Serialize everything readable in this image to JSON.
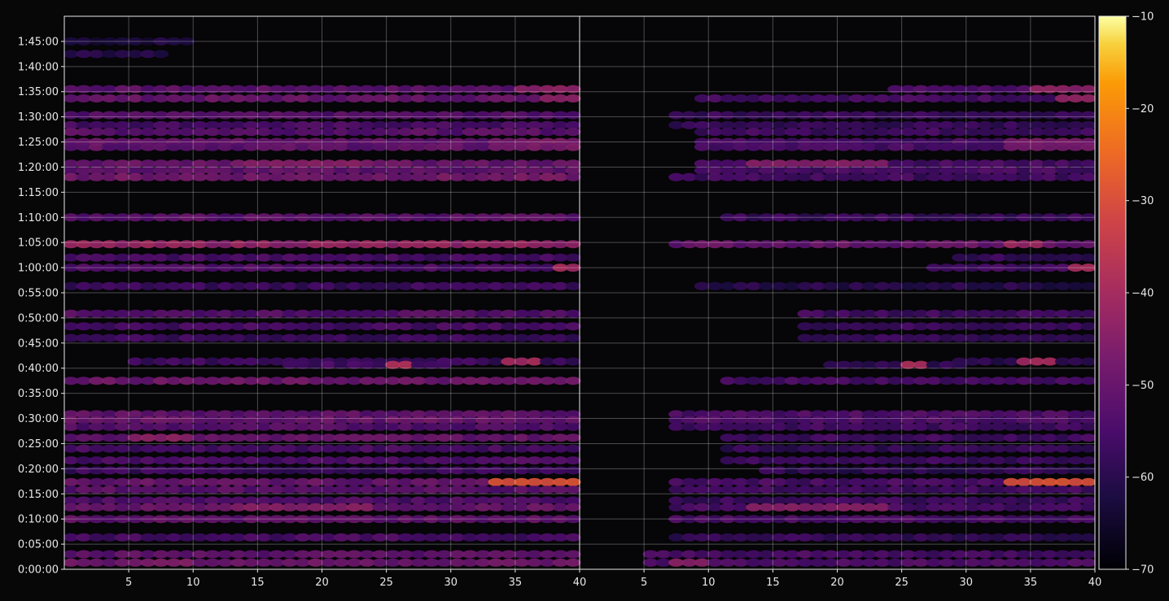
{
  "chart_data": {
    "type": "heatmap",
    "title": "",
    "xlabel": "",
    "ylabel": "",
    "grid": true,
    "panels": [
      {
        "name": "",
        "x_range": [
          1,
          40
        ],
        "x_ticks": [
          5,
          10,
          15,
          20,
          25,
          30,
          35,
          40
        ]
      },
      {
        "name": "",
        "x_range": [
          1,
          40
        ],
        "x_ticks": [
          5,
          10,
          15,
          20,
          25,
          30,
          35,
          40
        ]
      }
    ],
    "y_range_seconds": [
      0,
      6600
    ],
    "y_ticks": [
      {
        "v": 0,
        "label": "0:00:00"
      },
      {
        "v": 300,
        "label": "0:05:00"
      },
      {
        "v": 600,
        "label": "0:10:00"
      },
      {
        "v": 900,
        "label": "0:15:00"
      },
      {
        "v": 1200,
        "label": "0:20:00"
      },
      {
        "v": 1500,
        "label": "0:25:00"
      },
      {
        "v": 1800,
        "label": "0:30:00"
      },
      {
        "v": 2100,
        "label": "0:35:00"
      },
      {
        "v": 2400,
        "label": "0:40:00"
      },
      {
        "v": 2700,
        "label": "0:45:00"
      },
      {
        "v": 3000,
        "label": "0:50:00"
      },
      {
        "v": 3300,
        "label": "0:55:00"
      },
      {
        "v": 3600,
        "label": "1:00:00"
      },
      {
        "v": 3900,
        "label": "1:05:00"
      },
      {
        "v": 4200,
        "label": "1:10:00"
      },
      {
        "v": 4500,
        "label": "1:15:00"
      },
      {
        "v": 4800,
        "label": "1:20:00"
      },
      {
        "v": 5100,
        "label": "1:25:00"
      },
      {
        "v": 5400,
        "label": "1:30:00"
      },
      {
        "v": 5700,
        "label": "1:35:00"
      },
      {
        "v": 6000,
        "label": "1:40:00"
      },
      {
        "v": 6300,
        "label": "1:45:00"
      }
    ],
    "colorbar": {
      "colormap": "inferno",
      "range": [
        -70,
        -10
      ],
      "ticks": [
        {
          "v": -10,
          "label": "−10"
        },
        {
          "v": -20,
          "label": "−20"
        },
        {
          "v": -30,
          "label": "−30"
        },
        {
          "v": -40,
          "label": "−40"
        },
        {
          "v": -50,
          "label": "−50"
        },
        {
          "v": -60,
          "label": "−60"
        },
        {
          "v": -70,
          "label": "−70"
        }
      ]
    },
    "bands": [
      {
        "t": 6300,
        "p1": [
          1,
          10,
          -62
        ],
        "p2": null
      },
      {
        "t": 6150,
        "p1": [
          1,
          8,
          -60
        ],
        "p2": null
      },
      {
        "t": 5730,
        "p1": [
          1,
          40,
          -52
        ],
        "p2": [
          25,
          40,
          -54
        ],
        "hot": [
          [
            36,
            40,
            -44
          ]
        ]
      },
      {
        "t": 5620,
        "p1": [
          1,
          40,
          -50
        ],
        "p2": [
          10,
          40,
          -55
        ],
        "hot": [
          [
            38,
            40,
            -43
          ]
        ]
      },
      {
        "t": 5420,
        "p1": [
          1,
          40,
          -53
        ],
        "p2": [
          8,
          40,
          -57
        ]
      },
      {
        "t": 5300,
        "p1": [
          1,
          40,
          -55
        ],
        "p2": [
          8,
          40,
          -58
        ]
      },
      {
        "t": 5220,
        "p1": [
          1,
          40,
          -52
        ],
        "p2": [
          10,
          40,
          -56
        ]
      },
      {
        "t": 5100,
        "p1": [
          1,
          40,
          -50
        ],
        "p2": [
          10,
          40,
          -55
        ],
        "hot": [
          [
            34,
            40,
            -47
          ]
        ]
      },
      {
        "t": 5040,
        "p1": [
          1,
          40,
          -51
        ],
        "p2": [
          10,
          40,
          -55
        ],
        "hot": [
          [
            34,
            40,
            -47
          ]
        ]
      },
      {
        "t": 4840,
        "p1": [
          1,
          40,
          -50
        ],
        "p2": [
          10,
          40,
          -55
        ],
        "hot": [
          [
            14,
            24,
            -45
          ]
        ]
      },
      {
        "t": 4760,
        "p1": [
          1,
          40,
          -51
        ],
        "p2": [
          10,
          40,
          -55
        ]
      },
      {
        "t": 4680,
        "p1": [
          1,
          40,
          -48
        ],
        "p2": [
          8,
          40,
          -56
        ]
      },
      {
        "t": 4200,
        "p1": [
          1,
          40,
          -52
        ],
        "p2": [
          12,
          40,
          -57
        ]
      },
      {
        "t": 3880,
        "p1": [
          1,
          40,
          -43
        ],
        "p2": [
          8,
          40,
          -50
        ],
        "hot": [
          [
            34,
            36,
            -42
          ]
        ]
      },
      {
        "t": 3720,
        "p1": [
          1,
          40,
          -55
        ],
        "p2": [
          30,
          40,
          -58
        ]
      },
      {
        "t": 3600,
        "p1": [
          1,
          40,
          -54
        ],
        "p2": [
          28,
          40,
          -56
        ],
        "hot": [
          [
            39,
            40,
            -40
          ]
        ]
      },
      {
        "t": 3380,
        "p1": [
          1,
          40,
          -57
        ],
        "p2": [
          10,
          40,
          -60
        ]
      },
      {
        "t": 3050,
        "p1": [
          1,
          40,
          -53
        ],
        "p2": [
          18,
          40,
          -56
        ]
      },
      {
        "t": 2900,
        "p1": [
          1,
          40,
          -55
        ],
        "p2": [
          18,
          40,
          -57
        ]
      },
      {
        "t": 2760,
        "p1": [
          1,
          40,
          -57
        ],
        "p2": [
          18,
          40,
          -58
        ]
      },
      {
        "t": 2480,
        "p1": [
          6,
          40,
          -57
        ],
        "p2": [
          30,
          40,
          -60
        ],
        "hot": [
          [
            35,
            37,
            -40
          ]
        ]
      },
      {
        "t": 2440,
        "p1": [
          18,
          30,
          -56
        ],
        "p2": [
          20,
          30,
          -58
        ],
        "hot": [
          [
            26,
            27,
            -38
          ]
        ]
      },
      {
        "t": 2250,
        "p1": [
          1,
          40,
          -49
        ],
        "p2": [
          12,
          40,
          -55
        ]
      },
      {
        "t": 1850,
        "p1": [
          1,
          40,
          -51
        ],
        "p2": [
          8,
          40,
          -54
        ]
      },
      {
        "t": 1780,
        "p1": [
          1,
          40,
          -50
        ],
        "p2": [
          8,
          40,
          -54
        ]
      },
      {
        "t": 1700,
        "p1": [
          1,
          40,
          -53
        ],
        "p2": [
          8,
          40,
          -56
        ]
      },
      {
        "t": 1570,
        "p1": [
          1,
          40,
          -50
        ],
        "p2": [
          12,
          40,
          -56
        ],
        "hot": [
          [
            6,
            10,
            -44
          ]
        ]
      },
      {
        "t": 1440,
        "p1": [
          1,
          40,
          -55
        ],
        "p2": [
          12,
          40,
          -58
        ]
      },
      {
        "t": 1300,
        "p1": [
          1,
          40,
          -54
        ],
        "p2": [
          12,
          40,
          -57
        ]
      },
      {
        "t": 1180,
        "p1": [
          1,
          40,
          -57
        ],
        "p2": [
          15,
          40,
          -59
        ]
      },
      {
        "t": 1040,
        "p1": [
          1,
          40,
          -50
        ],
        "p2": [
          8,
          40,
          -55
        ],
        "hot": [
          [
            34,
            40,
            -30
          ]
        ]
      },
      {
        "t": 950,
        "p1": [
          1,
          40,
          -52
        ],
        "p2": [
          8,
          40,
          -56
        ]
      },
      {
        "t": 820,
        "p1": [
          1,
          40,
          -54
        ],
        "p2": [
          8,
          40,
          -57
        ]
      },
      {
        "t": 740,
        "p1": [
          1,
          40,
          -50
        ],
        "p2": [
          8,
          40,
          -55
        ],
        "hot": [
          [
            14,
            24,
            -45
          ]
        ]
      },
      {
        "t": 600,
        "p1": [
          1,
          40,
          -51
        ],
        "p2": [
          8,
          40,
          -55
        ]
      },
      {
        "t": 380,
        "p1": [
          1,
          40,
          -55
        ],
        "p2": [
          8,
          40,
          -58
        ]
      },
      {
        "t": 180,
        "p1": [
          1,
          40,
          -51
        ],
        "p2": [
          6,
          40,
          -55
        ]
      },
      {
        "t": 80,
        "p1": [
          1,
          40,
          -49
        ],
        "p2": [
          6,
          40,
          -54
        ],
        "hot": [
          [
            8,
            10,
            -45
          ]
        ]
      }
    ]
  }
}
